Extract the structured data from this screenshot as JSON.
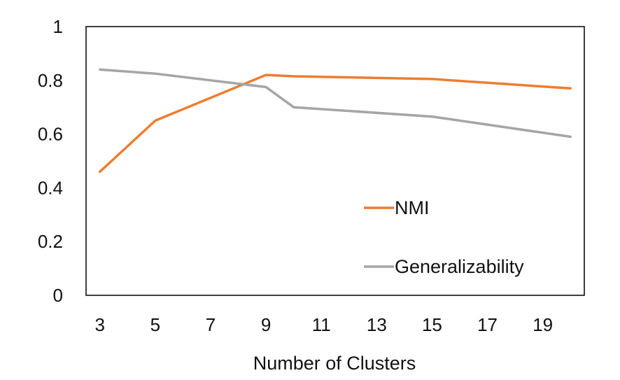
{
  "chart_data": {
    "type": "line",
    "title": "",
    "xlabel": "Number of Clusters",
    "ylabel": "",
    "x": [
      3,
      5,
      9,
      10,
      15,
      20
    ],
    "xticks": [
      3,
      5,
      7,
      9,
      11,
      13,
      15,
      17,
      19
    ],
    "xlim": [
      2.5,
      20.5
    ],
    "yticks": [
      0,
      0.2,
      0.4,
      0.6,
      0.8,
      1
    ],
    "ylim": [
      0,
      1
    ],
    "grid": false,
    "legend_position": "center-right",
    "series": [
      {
        "name": "NMI",
        "color": "#ED7D31",
        "values": [
          0.46,
          0.65,
          0.82,
          0.815,
          0.805,
          0.77
        ]
      },
      {
        "name": "Generalizability",
        "color": "#A5A5A5",
        "values": [
          0.84,
          0.825,
          0.775,
          0.7,
          0.665,
          0.59
        ]
      }
    ]
  }
}
